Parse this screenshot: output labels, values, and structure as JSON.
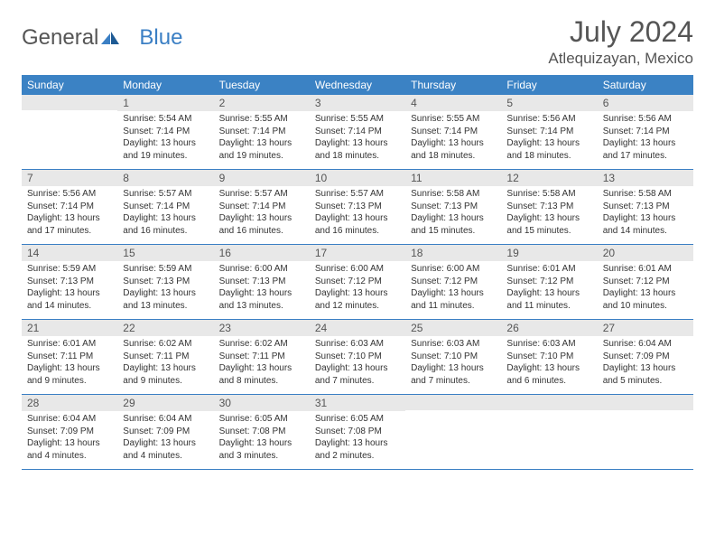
{
  "brand": {
    "part1": "General",
    "part2": "Blue"
  },
  "title": "July 2024",
  "location": "Atlequizayan, Mexico",
  "colors": {
    "header_bg": "#3b82c4",
    "header_fg": "#ffffff",
    "daynum_bg": "#e8e8e8",
    "rule": "#3b7fc4",
    "text": "#333333",
    "title_text": "#555555"
  },
  "weekdays": [
    "Sunday",
    "Monday",
    "Tuesday",
    "Wednesday",
    "Thursday",
    "Friday",
    "Saturday"
  ],
  "start_weekday": 1,
  "days": [
    {
      "n": 1,
      "sunrise": "5:54 AM",
      "sunset": "7:14 PM",
      "daylight": "13 hours and 19 minutes."
    },
    {
      "n": 2,
      "sunrise": "5:55 AM",
      "sunset": "7:14 PM",
      "daylight": "13 hours and 19 minutes."
    },
    {
      "n": 3,
      "sunrise": "5:55 AM",
      "sunset": "7:14 PM",
      "daylight": "13 hours and 18 minutes."
    },
    {
      "n": 4,
      "sunrise": "5:55 AM",
      "sunset": "7:14 PM",
      "daylight": "13 hours and 18 minutes."
    },
    {
      "n": 5,
      "sunrise": "5:56 AM",
      "sunset": "7:14 PM",
      "daylight": "13 hours and 18 minutes."
    },
    {
      "n": 6,
      "sunrise": "5:56 AM",
      "sunset": "7:14 PM",
      "daylight": "13 hours and 17 minutes."
    },
    {
      "n": 7,
      "sunrise": "5:56 AM",
      "sunset": "7:14 PM",
      "daylight": "13 hours and 17 minutes."
    },
    {
      "n": 8,
      "sunrise": "5:57 AM",
      "sunset": "7:14 PM",
      "daylight": "13 hours and 16 minutes."
    },
    {
      "n": 9,
      "sunrise": "5:57 AM",
      "sunset": "7:14 PM",
      "daylight": "13 hours and 16 minutes."
    },
    {
      "n": 10,
      "sunrise": "5:57 AM",
      "sunset": "7:13 PM",
      "daylight": "13 hours and 16 minutes."
    },
    {
      "n": 11,
      "sunrise": "5:58 AM",
      "sunset": "7:13 PM",
      "daylight": "13 hours and 15 minutes."
    },
    {
      "n": 12,
      "sunrise": "5:58 AM",
      "sunset": "7:13 PM",
      "daylight": "13 hours and 15 minutes."
    },
    {
      "n": 13,
      "sunrise": "5:58 AM",
      "sunset": "7:13 PM",
      "daylight": "13 hours and 14 minutes."
    },
    {
      "n": 14,
      "sunrise": "5:59 AM",
      "sunset": "7:13 PM",
      "daylight": "13 hours and 14 minutes."
    },
    {
      "n": 15,
      "sunrise": "5:59 AM",
      "sunset": "7:13 PM",
      "daylight": "13 hours and 13 minutes."
    },
    {
      "n": 16,
      "sunrise": "6:00 AM",
      "sunset": "7:13 PM",
      "daylight": "13 hours and 13 minutes."
    },
    {
      "n": 17,
      "sunrise": "6:00 AM",
      "sunset": "7:12 PM",
      "daylight": "13 hours and 12 minutes."
    },
    {
      "n": 18,
      "sunrise": "6:00 AM",
      "sunset": "7:12 PM",
      "daylight": "13 hours and 11 minutes."
    },
    {
      "n": 19,
      "sunrise": "6:01 AM",
      "sunset": "7:12 PM",
      "daylight": "13 hours and 11 minutes."
    },
    {
      "n": 20,
      "sunrise": "6:01 AM",
      "sunset": "7:12 PM",
      "daylight": "13 hours and 10 minutes."
    },
    {
      "n": 21,
      "sunrise": "6:01 AM",
      "sunset": "7:11 PM",
      "daylight": "13 hours and 9 minutes."
    },
    {
      "n": 22,
      "sunrise": "6:02 AM",
      "sunset": "7:11 PM",
      "daylight": "13 hours and 9 minutes."
    },
    {
      "n": 23,
      "sunrise": "6:02 AM",
      "sunset": "7:11 PM",
      "daylight": "13 hours and 8 minutes."
    },
    {
      "n": 24,
      "sunrise": "6:03 AM",
      "sunset": "7:10 PM",
      "daylight": "13 hours and 7 minutes."
    },
    {
      "n": 25,
      "sunrise": "6:03 AM",
      "sunset": "7:10 PM",
      "daylight": "13 hours and 7 minutes."
    },
    {
      "n": 26,
      "sunrise": "6:03 AM",
      "sunset": "7:10 PM",
      "daylight": "13 hours and 6 minutes."
    },
    {
      "n": 27,
      "sunrise": "6:04 AM",
      "sunset": "7:09 PM",
      "daylight": "13 hours and 5 minutes."
    },
    {
      "n": 28,
      "sunrise": "6:04 AM",
      "sunset": "7:09 PM",
      "daylight": "13 hours and 4 minutes."
    },
    {
      "n": 29,
      "sunrise": "6:04 AM",
      "sunset": "7:09 PM",
      "daylight": "13 hours and 4 minutes."
    },
    {
      "n": 30,
      "sunrise": "6:05 AM",
      "sunset": "7:08 PM",
      "daylight": "13 hours and 3 minutes."
    },
    {
      "n": 31,
      "sunrise": "6:05 AM",
      "sunset": "7:08 PM",
      "daylight": "13 hours and 2 minutes."
    }
  ],
  "labels": {
    "sunrise": "Sunrise:",
    "sunset": "Sunset:",
    "daylight": "Daylight:"
  }
}
